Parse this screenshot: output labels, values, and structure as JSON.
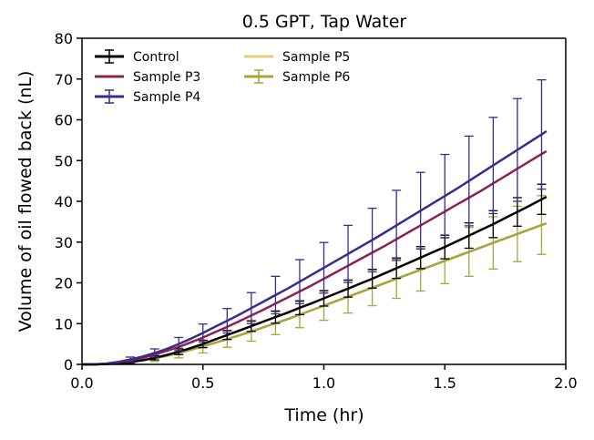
{
  "chart_data": {
    "type": "line",
    "title": "0.5 GPT, Tap Water",
    "xlabel": "Time (hr)",
    "ylabel": "Volume of oil flowed back (nL)",
    "xlim": [
      0.0,
      2.0
    ],
    "ylim": [
      0,
      80
    ],
    "xticks": [
      "0.0",
      "0.5",
      "1.0",
      "1.5",
      "2.0"
    ],
    "yticks": [
      "0",
      "10",
      "20",
      "30",
      "40",
      "50",
      "60",
      "70",
      "80"
    ],
    "grid": false,
    "legend_position": "top-left",
    "x": [
      0.0,
      0.05,
      0.1,
      0.15,
      0.2,
      0.25,
      0.3,
      0.35,
      0.4,
      0.45,
      0.5,
      0.55,
      0.6,
      0.65,
      0.7,
      0.75,
      0.8,
      0.85,
      0.9,
      0.95,
      1.0,
      1.05,
      1.1,
      1.15,
      1.2,
      1.25,
      1.3,
      1.35,
      1.4,
      1.45,
      1.5,
      1.55,
      1.6,
      1.65,
      1.7,
      1.75,
      1.8,
      1.85,
      1.9,
      1.92
    ],
    "series": [
      {
        "name": "Control",
        "color": "#000000",
        "errorbars": true,
        "err_every": 2,
        "values": [
          0,
          0,
          0.1,
          0.3,
          0.6,
          1.0,
          1.6,
          2.3,
          3.1,
          4.0,
          5.0,
          6.1,
          7.2,
          8.3,
          9.4,
          10.5,
          11.6,
          12.7,
          13.9,
          15.0,
          16.2,
          17.4,
          18.6,
          19.8,
          21.0,
          22.3,
          23.6,
          24.9,
          26.2,
          27.5,
          28.8,
          30.2,
          31.6,
          33.0,
          34.4,
          35.9,
          37.4,
          38.9,
          40.5,
          41.1
        ],
        "errors": [
          0,
          0,
          0.1,
          0.2,
          0.3,
          0.4,
          0.5,
          0.6,
          0.7,
          0.8,
          0.9,
          1.0,
          1.1,
          1.2,
          1.3,
          1.4,
          1.5,
          1.6,
          1.7,
          1.8,
          1.9,
          2.0,
          2.1,
          2.2,
          2.3,
          2.4,
          2.5,
          2.6,
          2.7,
          2.8,
          2.9,
          3.0,
          3.1,
          3.2,
          3.3,
          3.4,
          3.5,
          3.6,
          3.7,
          3.8
        ]
      },
      {
        "name": "Sample P3",
        "color": "#8b2252",
        "errorbars": false,
        "values": [
          0,
          0,
          0.2,
          0.5,
          1.0,
          1.6,
          2.4,
          3.3,
          4.3,
          5.4,
          6.6,
          7.9,
          9.2,
          10.6,
          12.0,
          13.4,
          14.9,
          16.4,
          17.9,
          19.4,
          21.0,
          22.6,
          24.2,
          25.8,
          27.4,
          29.0,
          30.7,
          32.4,
          34.1,
          35.8,
          37.5,
          39.2,
          40.9,
          42.6,
          44.4,
          46.2,
          48.0,
          49.8,
          51.6,
          52.3
        ]
      },
      {
        "name": "Sample P4",
        "color": "#3b2a8f",
        "errorbars": true,
        "err_every": 2,
        "values": [
          0,
          0,
          0.2,
          0.6,
          1.2,
          1.9,
          2.8,
          3.8,
          5.0,
          6.3,
          7.7,
          9.2,
          10.7,
          12.2,
          13.8,
          15.4,
          17.0,
          18.6,
          20.3,
          22.0,
          23.7,
          25.4,
          27.1,
          28.8,
          30.5,
          32.3,
          34.1,
          35.9,
          37.7,
          39.5,
          41.3,
          43.1,
          45.0,
          46.9,
          48.8,
          50.7,
          52.6,
          54.5,
          56.4,
          57.2
        ],
        "errors": [
          0,
          0,
          0.2,
          0.4,
          0.6,
          0.8,
          1.0,
          1.3,
          1.6,
          1.9,
          2.2,
          2.6,
          3.0,
          3.4,
          3.8,
          4.2,
          4.6,
          5.0,
          5.4,
          5.8,
          6.2,
          6.6,
          7.0,
          7.4,
          7.8,
          8.2,
          8.6,
          9.0,
          9.4,
          9.8,
          10.2,
          10.6,
          11.0,
          11.4,
          11.8,
          12.2,
          12.6,
          13.0,
          13.4,
          13.8
        ]
      },
      {
        "name": "Sample P5",
        "color": "#e3cf7b",
        "errorbars": false,
        "values": [
          0,
          0,
          0.1,
          0.3,
          0.6,
          1.0,
          1.5,
          2.1,
          2.8,
          3.6,
          4.4,
          5.3,
          6.2,
          7.1,
          8.1,
          9.1,
          10.1,
          11.1,
          12.2,
          13.3,
          14.4,
          15.5,
          16.6,
          17.7,
          18.8,
          19.9,
          21.0,
          22.1,
          23.2,
          24.3,
          25.4,
          26.5,
          27.6,
          28.7,
          29.8,
          30.9,
          32.0,
          33.1,
          34.2,
          34.6
        ]
      },
      {
        "name": "Sample P6",
        "color": "#a8a33a",
        "errorbars": true,
        "err_every": 2,
        "values": [
          0,
          0,
          0.1,
          0.3,
          0.6,
          1.0,
          1.5,
          2.1,
          2.8,
          3.6,
          4.4,
          5.3,
          6.2,
          7.1,
          8.1,
          9.1,
          10.1,
          11.1,
          12.2,
          13.3,
          14.4,
          15.5,
          16.6,
          17.7,
          18.8,
          19.9,
          21.0,
          22.1,
          23.2,
          24.3,
          25.4,
          26.5,
          27.6,
          28.7,
          29.8,
          30.9,
          32.0,
          33.1,
          34.2,
          34.6
        ],
        "errors": [
          0,
          0,
          0.1,
          0.2,
          0.4,
          0.6,
          0.8,
          1.0,
          1.2,
          1.4,
          1.6,
          1.8,
          2.0,
          2.2,
          2.4,
          2.6,
          2.8,
          3.0,
          3.2,
          3.4,
          3.6,
          3.8,
          4.0,
          4.2,
          4.4,
          4.6,
          4.8,
          5.0,
          5.2,
          5.4,
          5.6,
          5.8,
          6.0,
          6.2,
          6.4,
          6.6,
          6.8,
          7.0,
          7.2,
          7.4
        ]
      }
    ]
  }
}
